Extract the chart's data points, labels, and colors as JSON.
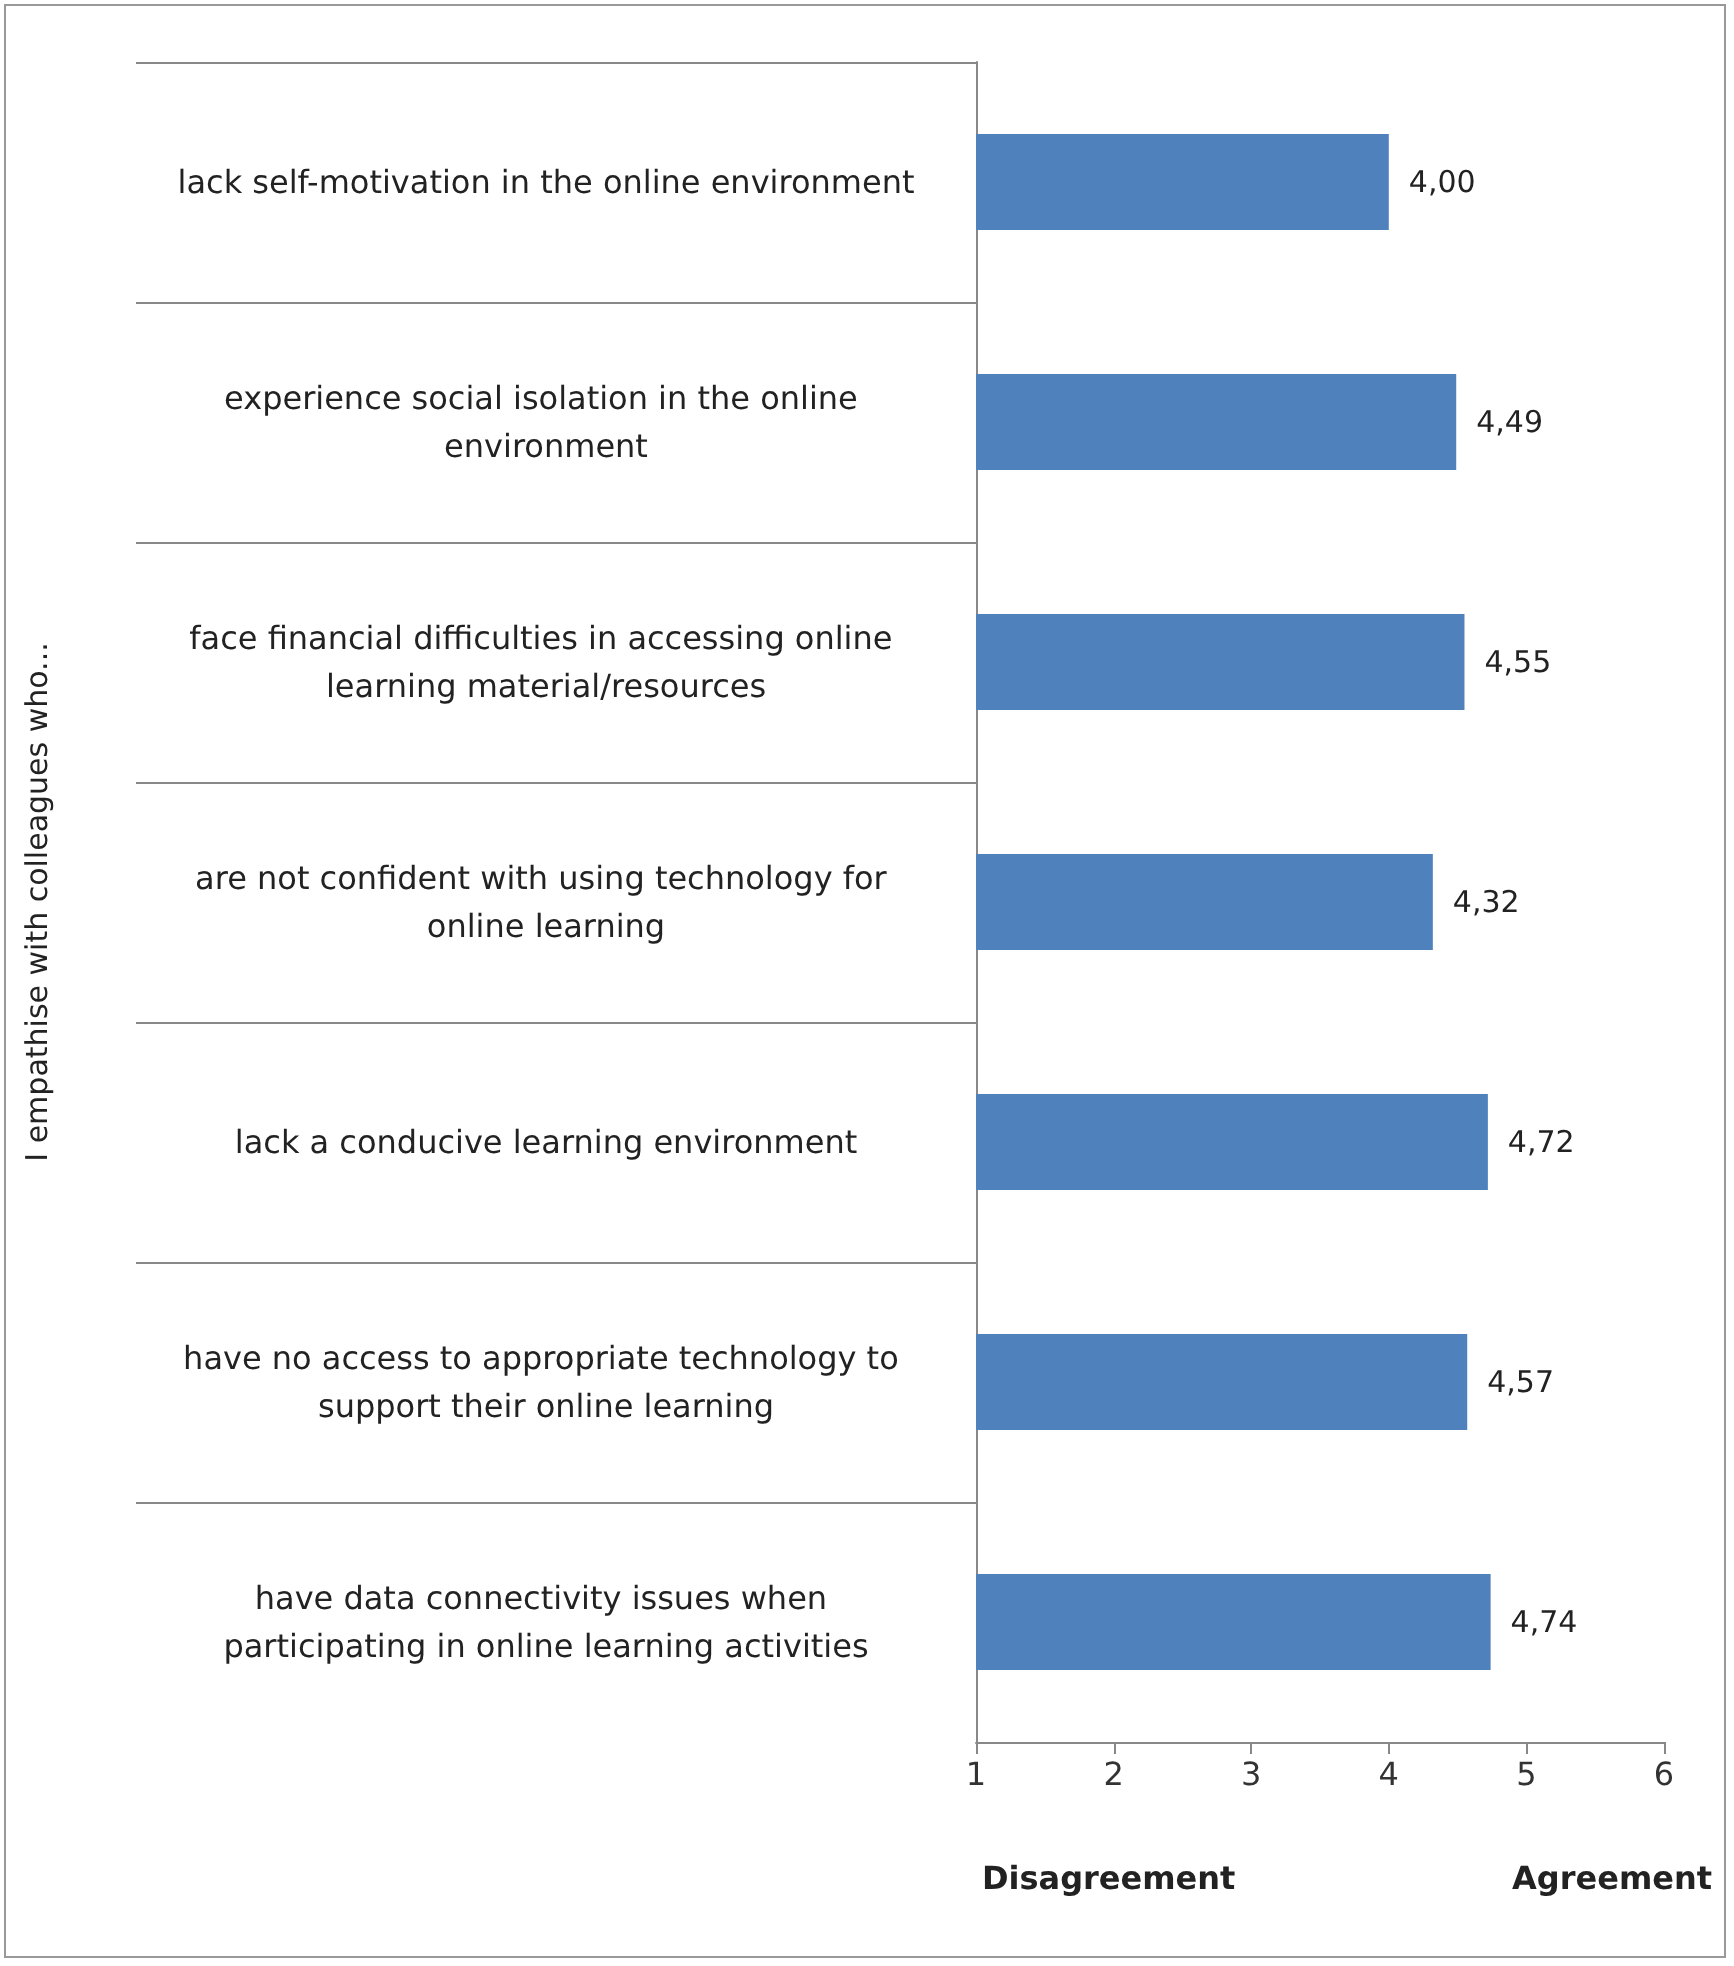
{
  "chart_data": {
    "type": "bar",
    "orientation": "horizontal",
    "categories": [
      "lack self-motivation in the online environment",
      "experience social isolation in the online environment",
      "face financial difficulties in accessing online learning material/resources",
      "are not confident with using technology for online learning",
      "lack a conducive learning environment",
      "have no access to appropriate technology to support their online learning",
      "have data connectivity issues when participating in online learning activities"
    ],
    "values": [
      4.0,
      4.49,
      4.55,
      4.32,
      4.72,
      4.57,
      4.74
    ],
    "value_labels": [
      "4,00",
      "4,49",
      "4,55",
      "4,32",
      "4,72",
      "4,57",
      "4,74"
    ],
    "color": "#4f81bd",
    "xlim": [
      1,
      6
    ],
    "xticks": [
      1,
      2,
      3,
      4,
      5,
      6
    ],
    "ylabel": "I empathise with colleagues who...",
    "annotations": [
      "Disagreement",
      "Agreement"
    ],
    "grid": false
  }
}
